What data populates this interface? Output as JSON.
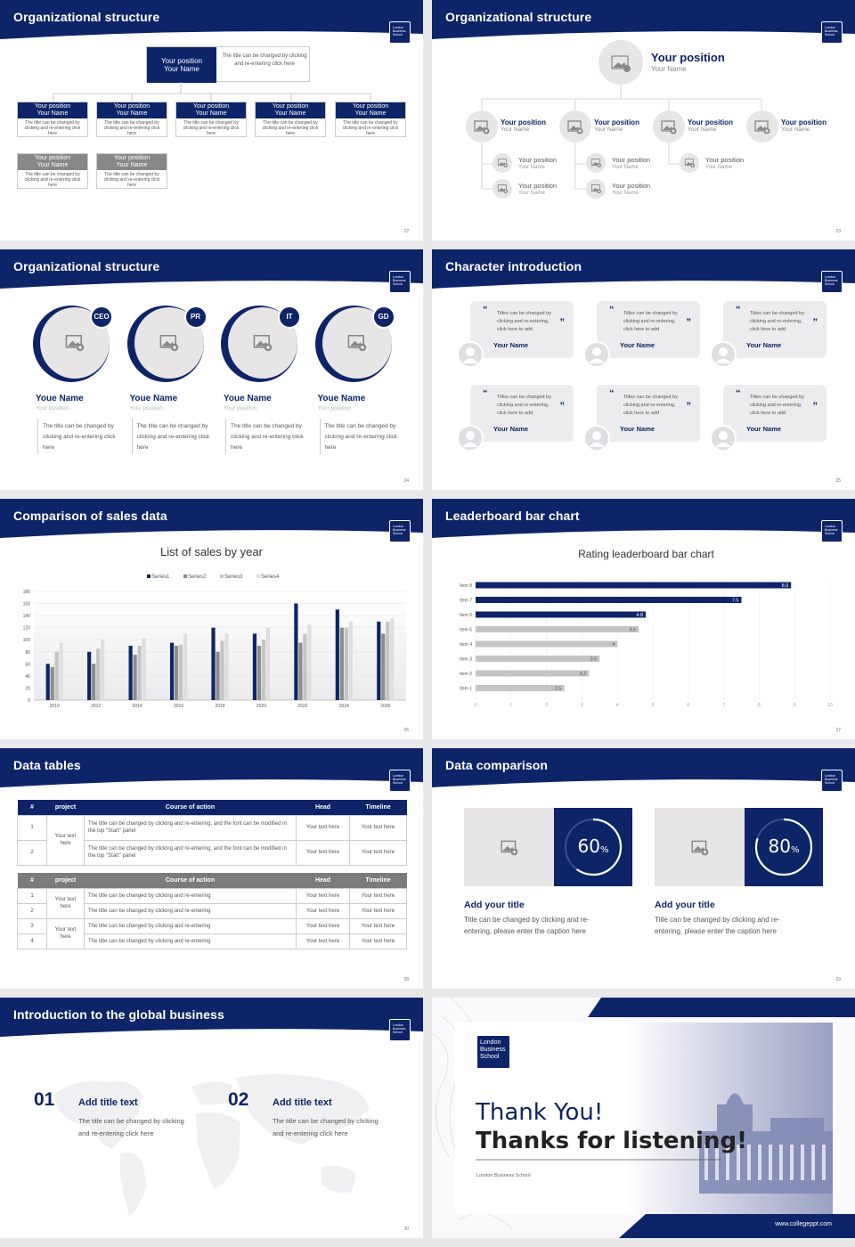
{
  "logo_text": "London Business School",
  "slides": {
    "s22": {
      "title": "Organizational structure",
      "page": "22",
      "top_box": {
        "pos": "Your position",
        "name": "Your Name",
        "desc": "The title can be changed by clicking and re-entering click here"
      },
      "box_pos": "Your position",
      "box_name": "Your Name",
      "box_desc": "The title can be changed by clicking and re-entering click here"
    },
    "s23": {
      "title": "Organizational structure",
      "page": "23",
      "pos": "Your position",
      "name": "Your Name"
    },
    "s24": {
      "title": "Organizational structure",
      "page": "24",
      "people": [
        {
          "tag": "CEO",
          "name": "Youe Name",
          "pos": "Your position",
          "desc": "The title can be changed by clicking and re-entering click here"
        },
        {
          "tag": "PR",
          "name": "Youe Name",
          "pos": "Your position",
          "desc": "The title can be changed by clicking and re-entering click here"
        },
        {
          "tag": "IT",
          "name": "Youe Name",
          "pos": "Your position",
          "desc": "The title can be changed by clicking and re-entering click here"
        },
        {
          "tag": "GD",
          "name": "Youe Name",
          "pos": "Your position",
          "desc": "The title can be changed by clicking and re-entering click here"
        }
      ]
    },
    "s25": {
      "title": "Character introduction",
      "page": "25",
      "text": "Titles can be changed by clicking and re-entering, click here to add",
      "name": "Your Name"
    },
    "s26": {
      "title": "Comparison of sales data",
      "page": "26"
    },
    "s27": {
      "title": "Leaderboard bar chart",
      "page": "27"
    },
    "s28": {
      "title": "Data tables",
      "page": "28",
      "headers": [
        "#",
        "project",
        "Course of action",
        "Head",
        "Timeline"
      ],
      "t1": {
        "project": "Your text here",
        "rows": [
          {
            "n": "1",
            "action": "The title can be changed by clicking and re-entering, and the font can be modified in the top \"Start\" panel",
            "head": "Your text here",
            "time": "Your text here"
          },
          {
            "n": "2",
            "action": "The title can be changed by clicking and re-entering, and the font can be modified in the top \"Start\" panel",
            "head": "Your text here",
            "time": "Your text here"
          }
        ]
      },
      "t2": {
        "project_a": "Your text here",
        "project_b": "Your text here",
        "rows": [
          {
            "n": "1",
            "action": "The title can be changed by clicking and re-entering",
            "head": "Your text here",
            "time": "Your text here"
          },
          {
            "n": "2",
            "action": "The title can be changed by clicking and re-entering",
            "head": "Your text here",
            "time": "Your text here"
          },
          {
            "n": "3",
            "action": "The title can be changed by clicking and re-entering",
            "head": "Your text here",
            "time": "Your text here"
          },
          {
            "n": "4",
            "action": "The title can be changed by clicking and re-entering",
            "head": "Your text here",
            "time": "Your text here"
          }
        ]
      }
    },
    "s29": {
      "title": "Data comparison",
      "page": "29",
      "items": [
        {
          "pct": "60",
          "unit": "%",
          "value": 0.6,
          "title": "Add your title",
          "desc": "Title can be changed by clicking and re-entering, please enter the caption here"
        },
        {
          "pct": "80",
          "unit": "%",
          "value": 0.8,
          "title": "Add your title",
          "desc": "Title can be changed by clicking and re-entering, please enter the caption here"
        }
      ]
    },
    "s30": {
      "title": "Introduction to the global business",
      "page": "30",
      "items": [
        {
          "num": "01",
          "title": "Add title text",
          "desc": "The title can be changed by clicking and re-entering click here"
        },
        {
          "num": "02",
          "title": "Add title text",
          "desc": "The title can be changed by clicking and re-entering click here"
        }
      ]
    },
    "s31": {
      "line1": "Thank You!",
      "line2": "Thanks for listening!",
      "school": "London Business School",
      "url": "www.collegeppt.com"
    }
  },
  "chart_data": [
    {
      "type": "bar",
      "title": "List of sales by year",
      "categories": [
        "2010",
        "2012",
        "2014",
        "2016",
        "2018",
        "2020",
        "2022",
        "2024",
        "2026"
      ],
      "series": [
        {
          "name": "Series1",
          "color": "#0d2468",
          "values": [
            60,
            80,
            90,
            95,
            120,
            110,
            160,
            150,
            130
          ]
        },
        {
          "name": "Series2",
          "color": "#8c8c8c",
          "values": [
            55,
            60,
            75,
            90,
            80,
            90,
            95,
            120,
            110
          ]
        },
        {
          "name": "Series3",
          "color": "#c4c4c4",
          "values": [
            80,
            85,
            90,
            92,
            98,
            100,
            110,
            120,
            130
          ]
        },
        {
          "name": "Series4",
          "color": "#dedede",
          "values": [
            95,
            100,
            102,
            110,
            110,
            120,
            125,
            130,
            135
          ]
        }
      ],
      "ylim": [
        0,
        180
      ],
      "yticks": [
        "0",
        "20",
        "40",
        "60",
        "80",
        "100",
        "120",
        "140",
        "160",
        "180"
      ],
      "legend": "top"
    },
    {
      "type": "bar",
      "orientation": "horizontal",
      "title": "Rating leaderboard bar chart",
      "categories": [
        "Item 8",
        "Item 7",
        "Item 6",
        "Item 5",
        "Item 4",
        "Item 3",
        "Item 2",
        "Item 1"
      ],
      "values": [
        8.9,
        7.5,
        4.8,
        4.6,
        4,
        3.5,
        3.2,
        2.5
      ],
      "labels": [
        "8.9",
        "7.5",
        "4.8",
        "4.6",
        "4",
        "3.5",
        "3.2",
        "2.5"
      ],
      "top_n": 3,
      "colors": {
        "top": "#0d2468",
        "rest": "#c4c4c4"
      },
      "xlim": [
        0,
        10
      ],
      "xticks": [
        "0",
        "1",
        "2",
        "3",
        "4",
        "5",
        "6",
        "7",
        "8",
        "9",
        "10"
      ]
    }
  ]
}
